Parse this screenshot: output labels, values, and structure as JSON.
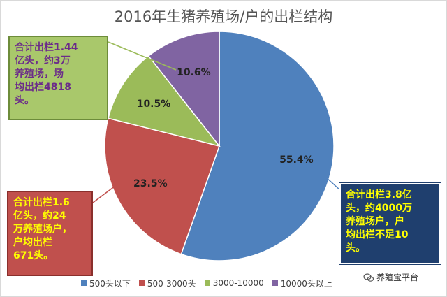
{
  "chart_data": {
    "type": "pie",
    "title": "2016年生猪养殖场/户的出栏结构",
    "slices": [
      {
        "label": "500头以下",
        "value": 55.4,
        "display": "55.4%",
        "color": "#4f81bd"
      },
      {
        "label": "500-3000头",
        "value": 23.5,
        "display": "23.5%",
        "color": "#c0504d"
      },
      {
        "label": "3000-10000",
        "value": 10.5,
        "display": "10.5%",
        "color": "#9bbb59"
      },
      {
        "label": "10000头以上",
        "value": 10.6,
        "display": "10.6%",
        "color": "#8064a2"
      }
    ],
    "legend_position": "bottom"
  },
  "callouts": {
    "green": "合计出栏1.44\n亿头，约3万\n养殖场，场\n均出栏4818\n头。",
    "red": "合计出栏1.6\n亿头，约24\n万养殖场户，\n户均出栏\n671头。",
    "blue": "合计出栏3.8亿\n头，约4000万\n养殖场户，户\n均出栏不足10\n头。"
  },
  "watermark": "养殖宝平台"
}
